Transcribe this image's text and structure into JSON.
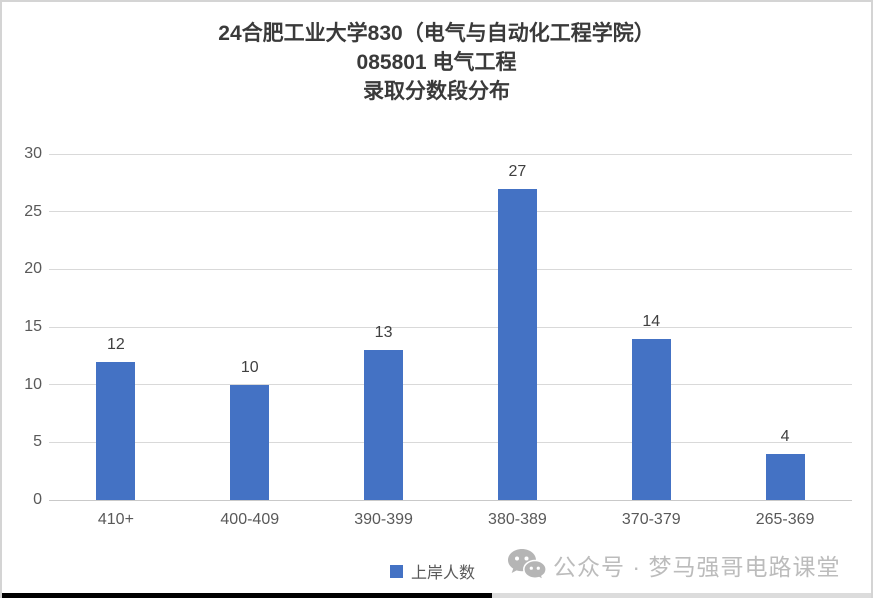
{
  "chart_data": {
    "type": "bar",
    "title_lines": [
      "24合肥工业大学830（电气与自动化工程学院）",
      "085801 电气工程",
      "录取分数段分布"
    ],
    "categories": [
      "410+",
      "400-409",
      "390-399",
      "380-389",
      "370-379",
      "265-369"
    ],
    "series": [
      {
        "name": "上岸人数",
        "values": [
          12,
          10,
          13,
          27,
          14,
          4
        ]
      }
    ],
    "ylim": [
      0,
      30
    ],
    "yticks": [
      0,
      5,
      10,
      15,
      20,
      25,
      30
    ],
    "grid": true,
    "legend_position": "bottom",
    "data_labels": true,
    "colors": {
      "bar": "#4472c4",
      "gridline": "#d9d9d9",
      "axis_line": "#c9c9c9",
      "axis_text": "#595959",
      "value_text": "#404040",
      "title_text": "#3a3a3a"
    }
  },
  "watermark": {
    "icon": "wechat-icon",
    "text": "公众号 · 梦马强哥电路课堂",
    "color": "#bcbcbc"
  }
}
